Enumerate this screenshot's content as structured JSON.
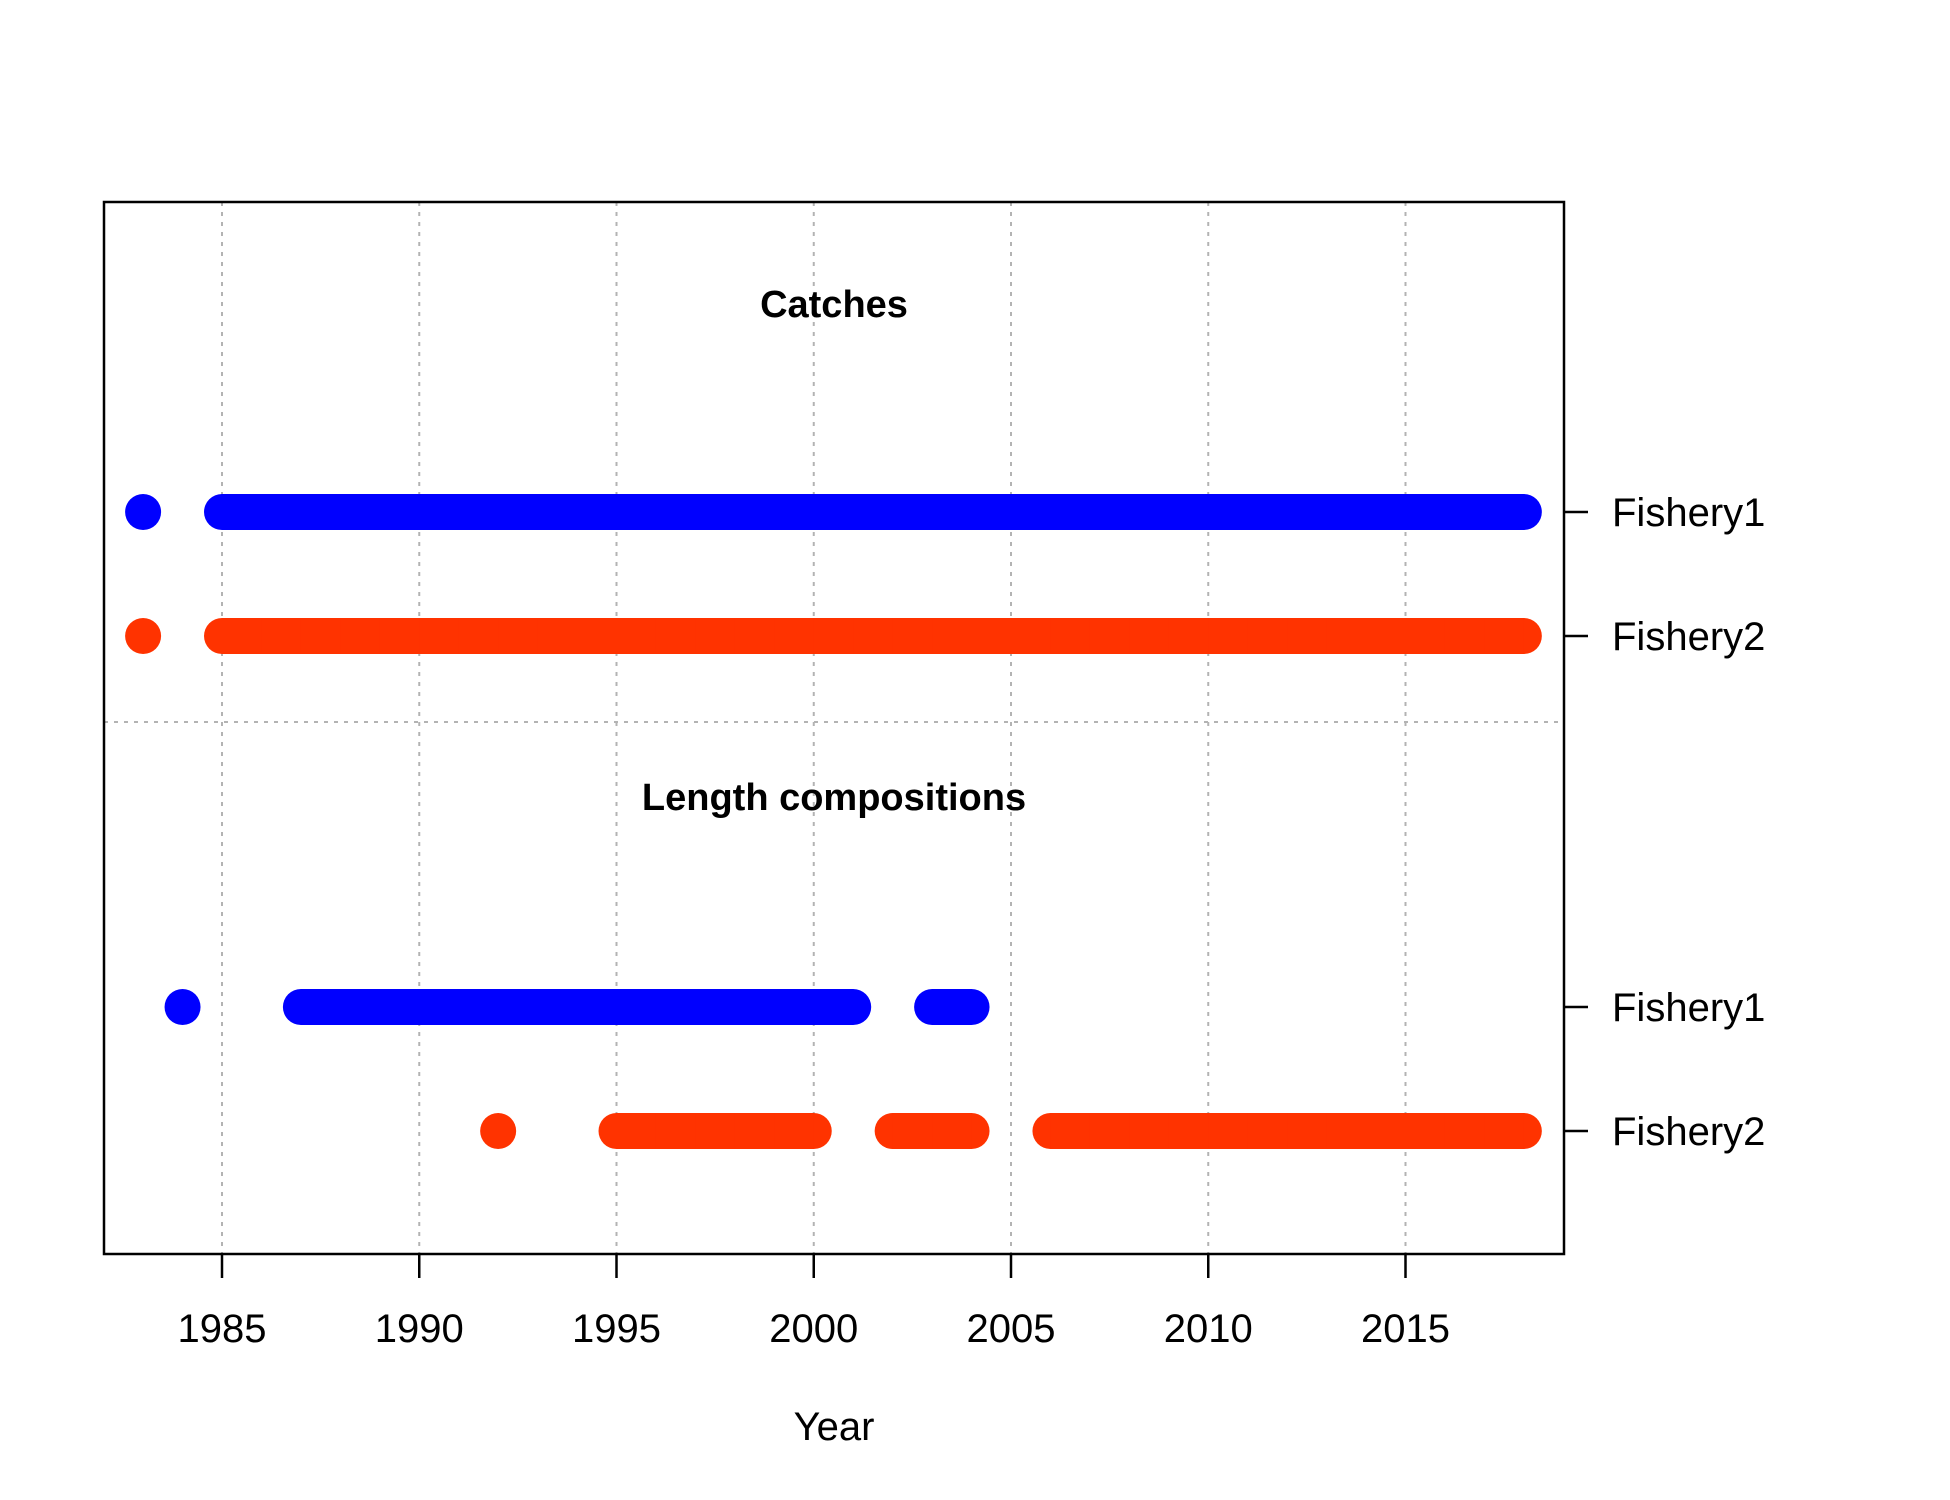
{
  "chart_data": {
    "type": "scatter",
    "xlabel": "Year",
    "xlim": [
      1982,
      2019
    ],
    "x_ticks": [
      "1985",
      "1990",
      "1995",
      "2000",
      "2005",
      "2010",
      "2015"
    ],
    "grid": true,
    "colors": {
      "Fishery1": "#0000ff",
      "Fishery2": "#ff3300"
    },
    "panels": [
      {
        "title": "Catches",
        "rows": [
          {
            "name": "Fishery1",
            "years": [
              1983,
              1985,
              1986,
              1987,
              1988,
              1989,
              1990,
              1991,
              1992,
              1993,
              1994,
              1995,
              1996,
              1997,
              1998,
              1999,
              2000,
              2001,
              2002,
              2003,
              2004,
              2005,
              2006,
              2007,
              2008,
              2009,
              2010,
              2011,
              2012,
              2013,
              2014,
              2015,
              2016,
              2017,
              2018
            ]
          },
          {
            "name": "Fishery2",
            "years": [
              1983,
              1985,
              1986,
              1987,
              1988,
              1989,
              1990,
              1991,
              1992,
              1993,
              1994,
              1995,
              1996,
              1997,
              1998,
              1999,
              2000,
              2001,
              2002,
              2003,
              2004,
              2005,
              2006,
              2007,
              2008,
              2009,
              2010,
              2011,
              2012,
              2013,
              2014,
              2015,
              2016,
              2017,
              2018
            ]
          }
        ]
      },
      {
        "title": "Length compositions",
        "rows": [
          {
            "name": "Fishery1",
            "years": [
              1984,
              1987,
              1988,
              1989,
              1990,
              1991,
              1992,
              1993,
              1994,
              1995,
              1996,
              1997,
              1998,
              1999,
              2000,
              2001,
              2003,
              2004
            ]
          },
          {
            "name": "Fishery2",
            "years": [
              1992,
              1995,
              1996,
              1997,
              1998,
              1999,
              2000,
              2002,
              2003,
              2004,
              2006,
              2007,
              2008,
              2009,
              2010,
              2011,
              2012,
              2013,
              2014,
              2015,
              2016,
              2017,
              2018
            ]
          }
        ]
      }
    ]
  }
}
